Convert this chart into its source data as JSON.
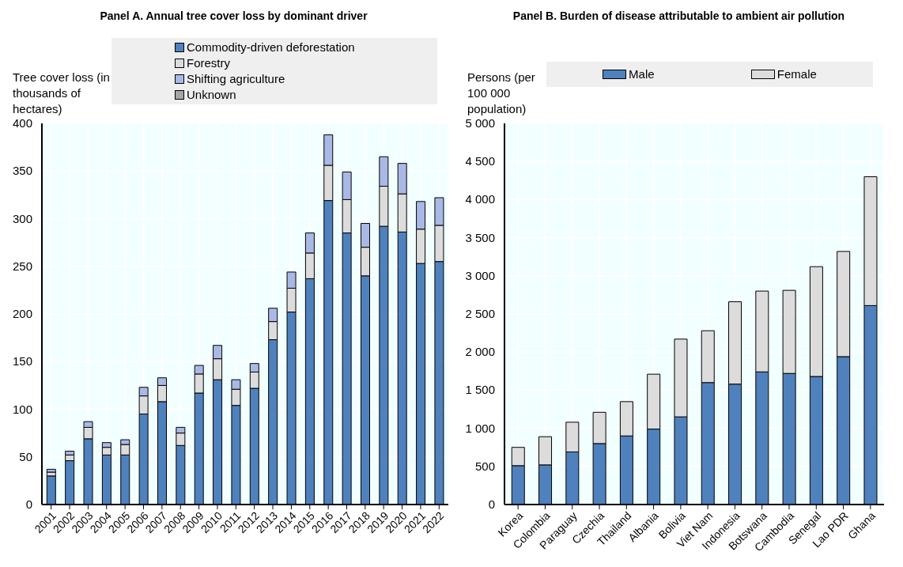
{
  "chart_data": [
    {
      "type": "bar",
      "title": "Panel A. Annual tree cover loss by dominant driver",
      "ylabel": "Tree cover loss (in thousands of hectares)",
      "stacked": true,
      "legend": "top",
      "grid": true,
      "categories": [
        "2001",
        "2002",
        "2003",
        "2004",
        "2005",
        "2006",
        "2007",
        "2008",
        "2009",
        "2010",
        "2011",
        "2012",
        "2013",
        "2014",
        "2015",
        "2016",
        "2017",
        "2018",
        "2019",
        "2020",
        "2021",
        "2022"
      ],
      "ylim": [
        0,
        400
      ],
      "yticks": [
        0,
        50,
        100,
        150,
        200,
        250,
        300,
        350,
        400
      ],
      "series": [
        {
          "name": "Commodity-driven deforestation",
          "color": "#4f81bd",
          "values": [
            30,
            46,
            69,
            52,
            52,
            95,
            108,
            62,
            117,
            131,
            104,
            122,
            173,
            202,
            237,
            319,
            285,
            240,
            292,
            286,
            253,
            255
          ]
        },
        {
          "name": "Forestry",
          "color": "#dcdcdc",
          "values": [
            4,
            6,
            12,
            8,
            11,
            19,
            17,
            13,
            20,
            22,
            17,
            17,
            19,
            25,
            27,
            37,
            35,
            30,
            42,
            40,
            36,
            38
          ]
        },
        {
          "name": "Shifting agriculture",
          "color": "#a9b9e6",
          "values": [
            3,
            4,
            6,
            5,
            5,
            9,
            8,
            6,
            9,
            14,
            10,
            9,
            14,
            17,
            21,
            32,
            29,
            25,
            31,
            32,
            29,
            29
          ]
        },
        {
          "name": "Unknown",
          "color": "#a6a6a6",
          "values": [
            0,
            0,
            0,
            0,
            0,
            0,
            0,
            0,
            0,
            0,
            0,
            0,
            0,
            0,
            0,
            0,
            0,
            0,
            0,
            0,
            0,
            0
          ]
        }
      ]
    },
    {
      "type": "bar",
      "title": "Panel B. Burden of disease attributable to ambient air pollution",
      "ylabel": "Persons (per 100 000 population)",
      "stacked": true,
      "legend": "top",
      "grid": true,
      "categories": [
        "Korea",
        "Colombia",
        "Paraguay",
        "Czechia",
        "Thailand",
        "Albania",
        "Bolivia",
        "Viet Nam",
        "Indonesia",
        "Botswana",
        "Cambodia",
        "Senegal",
        "Lao PDR",
        "Ghana"
      ],
      "ylim": [
        0,
        5000
      ],
      "yticks": [
        {
          "value": 0,
          "label": "0"
        },
        {
          "value": 500,
          "label": "500"
        },
        {
          "value": 1000,
          "label": "1 000"
        },
        {
          "value": 1500,
          "label": "1 500"
        },
        {
          "value": 2000,
          "label": "2 000"
        },
        {
          "value": 2500,
          "label": "2 500"
        },
        {
          "value": 3000,
          "label": "3 000"
        },
        {
          "value": 3500,
          "label": "3 500"
        },
        {
          "value": 4000,
          "label": "4 000"
        },
        {
          "value": 4500,
          "label": "4 500"
        },
        {
          "value": 5000,
          "label": "5 000"
        }
      ],
      "series": [
        {
          "name": "Male",
          "color": "#4f81bd",
          "values": [
            510,
            520,
            690,
            800,
            900,
            990,
            1150,
            1600,
            1580,
            1740,
            1720,
            1680,
            1940,
            2610
          ]
        },
        {
          "name": "Female",
          "color": "#dcdcdc",
          "values": [
            240,
            370,
            390,
            410,
            450,
            720,
            1020,
            680,
            1080,
            1060,
            1090,
            1440,
            1380,
            1690
          ]
        }
      ]
    }
  ]
}
